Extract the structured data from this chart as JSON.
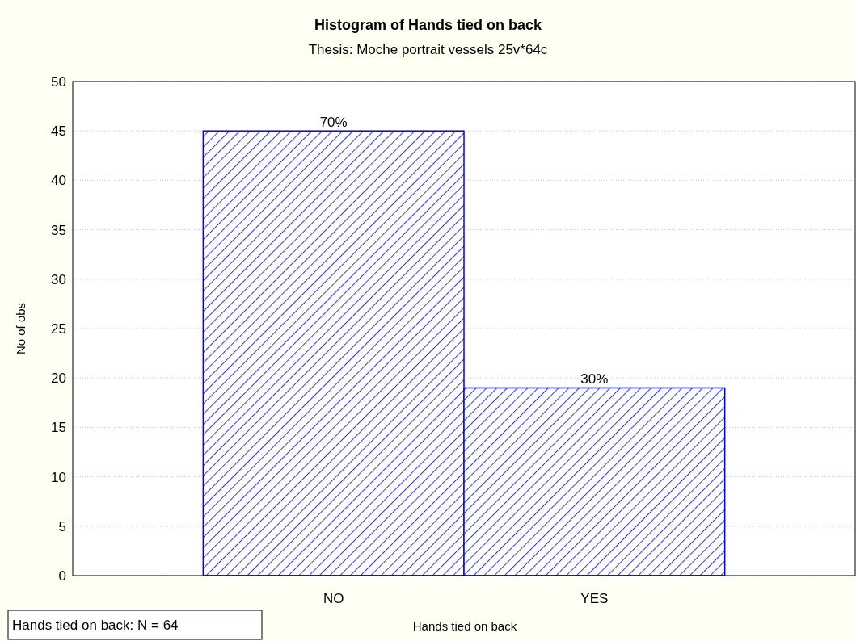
{
  "chart_data": {
    "type": "bar",
    "title": "Histogram of Hands tied on back",
    "subtitle": "Thesis: Moche portrait vessels 25v*64c",
    "xlabel": "Hands tied on back",
    "ylabel": "No of obs",
    "categories": [
      "NO",
      "YES"
    ],
    "values": [
      45,
      19
    ],
    "color": "#0000ff",
    "ylim": [
      0,
      50
    ],
    "yticks": [
      0,
      5,
      10,
      15,
      20,
      25,
      30,
      35,
      40,
      45,
      50
    ],
    "grid": "y",
    "annotations": [
      "Hands tied on back: N = 64",
      {
        "text": "70%",
        "x": "NO",
        "y": 45
      },
      {
        "text": "30%",
        "x": "YES",
        "y": 19
      }
    ]
  }
}
